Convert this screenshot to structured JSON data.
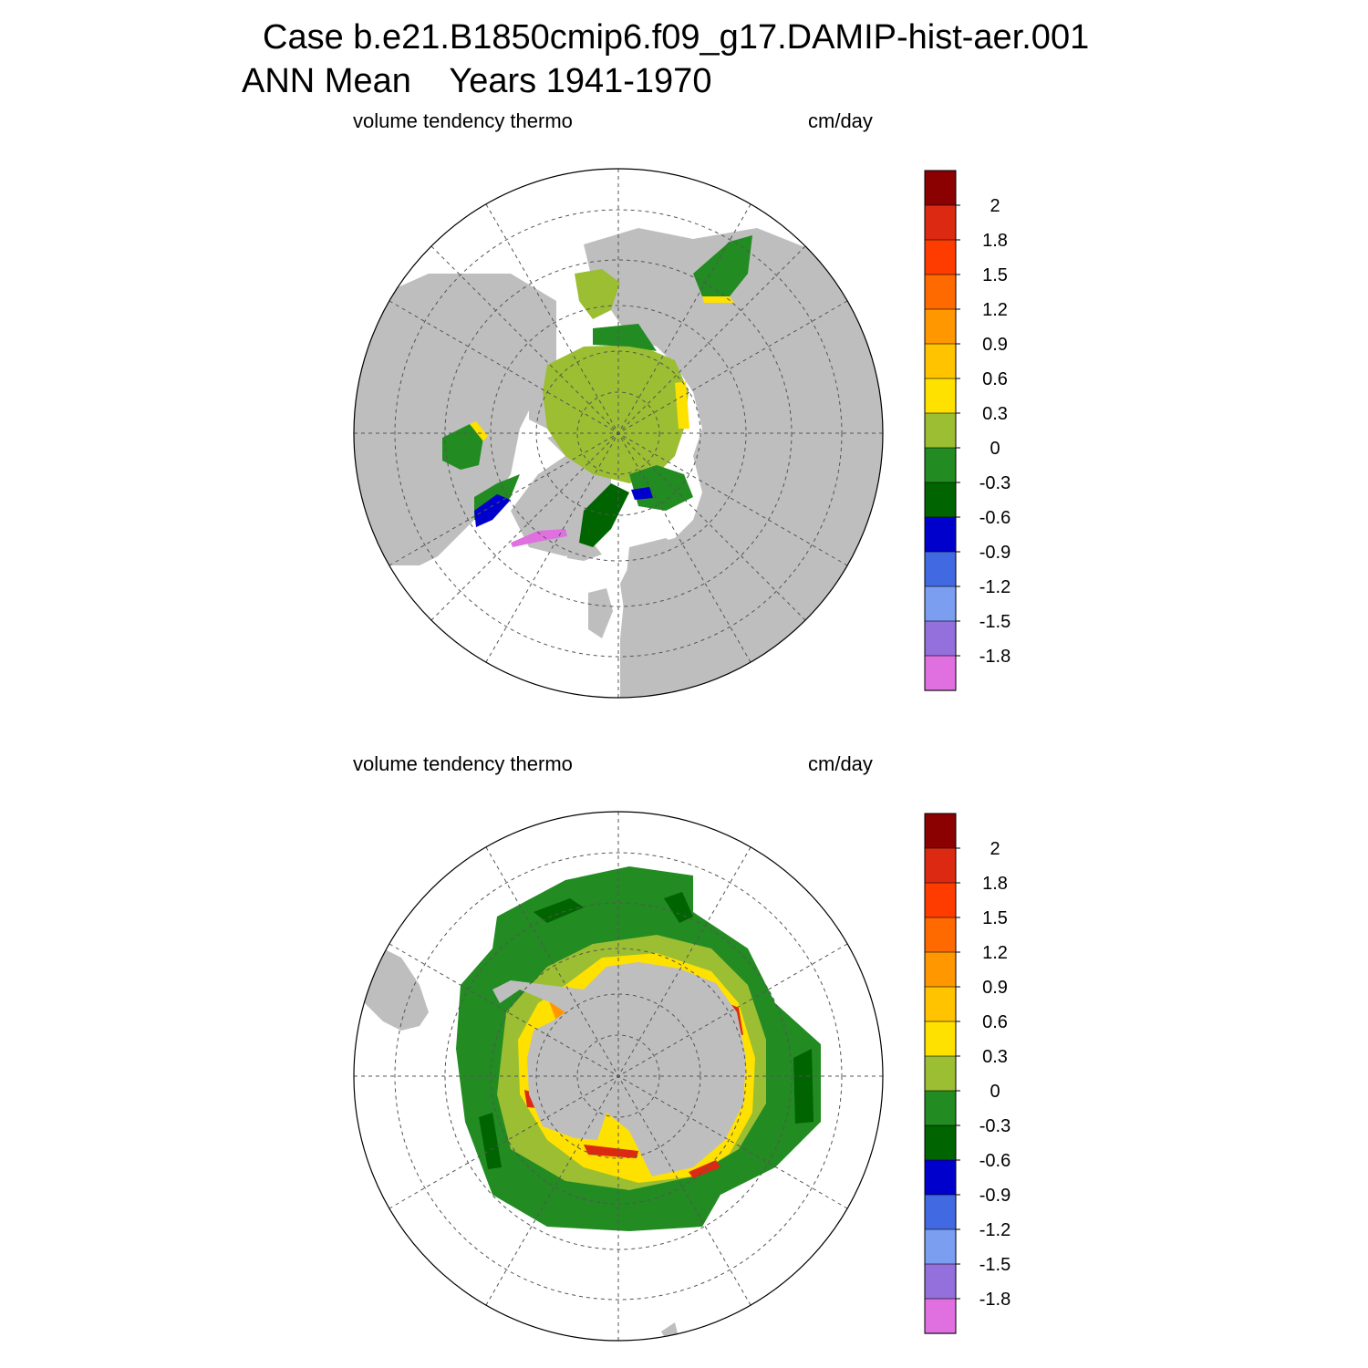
{
  "header": {
    "title_line1": "Case b.e21.B1850cmip6.f09_g17.DAMIP-hist-aer.001",
    "title_line2": "ANN Mean    Years 1941-1970"
  },
  "colors": {
    "land": "#bebebe",
    "ocean_no_ice": "#ffffff",
    "grid": "#555555"
  },
  "chart_data": [
    {
      "type": "heatmap",
      "hemisphere": "north",
      "projection": "polar stereographic",
      "variable_label": "volume tendency thermo",
      "units_label": "cm/day",
      "grid": true,
      "legend_placement": "right",
      "colorbar": {
        "tick_labels": [
          "2",
          "1.8",
          "1.5",
          "1.2",
          "0.9",
          "0.6",
          "0.3",
          "0",
          "-0.3",
          "-0.6",
          "-0.9",
          "-1.2",
          "-1.5",
          "-1.8"
        ],
        "colors": [
          "#8b0000",
          "#dc2a12",
          "#ff3c00",
          "#ff6a00",
          "#ff9800",
          "#ffc300",
          "#ffe100",
          "#9bbe32",
          "#228b22",
          "#006400",
          "#0000cd",
          "#4169e1",
          "#7b9ef0",
          "#9370db",
          "#e070e0"
        ]
      }
    },
    {
      "type": "heatmap",
      "hemisphere": "south",
      "projection": "polar stereographic",
      "variable_label": "volume tendency thermo",
      "units_label": "cm/day",
      "grid": true,
      "legend_placement": "right",
      "colorbar": {
        "tick_labels": [
          "2",
          "1.8",
          "1.5",
          "1.2",
          "0.9",
          "0.6",
          "0.3",
          "0",
          "-0.3",
          "-0.6",
          "-0.9",
          "-1.2",
          "-1.5",
          "-1.8"
        ],
        "colors": [
          "#8b0000",
          "#dc2a12",
          "#ff3c00",
          "#ff6a00",
          "#ff9800",
          "#ffc300",
          "#ffe100",
          "#9bbe32",
          "#228b22",
          "#006400",
          "#0000cd",
          "#4169e1",
          "#7b9ef0",
          "#9370db",
          "#e070e0"
        ]
      }
    }
  ]
}
